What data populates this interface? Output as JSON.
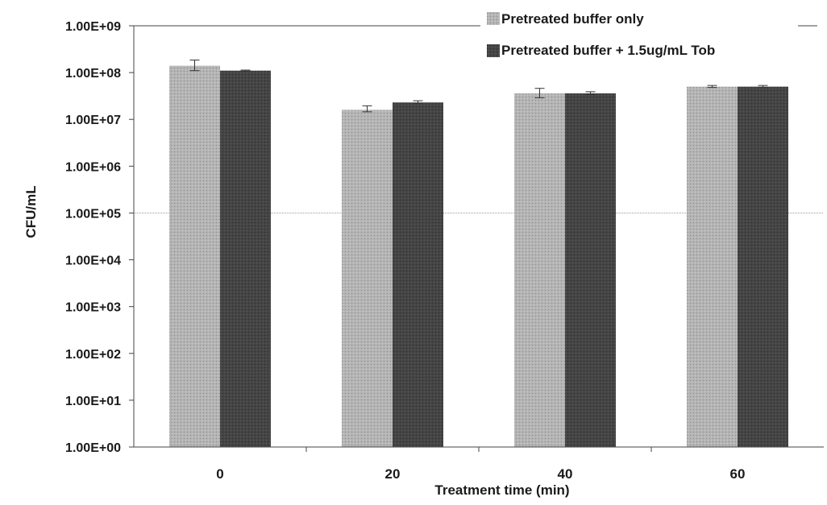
{
  "chart_data": {
    "type": "bar",
    "title": "",
    "xlabel": "Treatment time (min)",
    "ylabel": "CFU/mL",
    "y_scale": "log",
    "ylim": [
      1,
      1000000000
    ],
    "y_ticks": [
      1,
      10,
      100,
      1000,
      10000,
      100000,
      1000000,
      10000000,
      100000000,
      1000000000
    ],
    "y_tick_labels": [
      "1.00E+00",
      "1.00E+01",
      "1.00E+02",
      "1.00E+03",
      "1.00E+04",
      "1.00E+05",
      "1.00E+06",
      "1.00E+07",
      "1.00E+08",
      "1.00E+09"
    ],
    "categories": [
      "0",
      "20",
      "40",
      "60"
    ],
    "series": [
      {
        "name": "Pretreated buffer only",
        "color": "#b4b4b4",
        "values": [
          140000000,
          16000000,
          36000000,
          50000000
        ],
        "error_high": [
          185000000,
          19500000,
          46000000,
          53000000
        ],
        "error_low": [
          110000000,
          14500000,
          29000000,
          48000000
        ]
      },
      {
        "name": "Pretreated buffer + 1.5ug/mL Tob",
        "color": "#454545",
        "values": [
          110000000,
          23000000,
          36000000,
          50000000
        ],
        "error_high": [
          113000000,
          25000000,
          39000000,
          53000000
        ],
        "error_low": [
          107000000,
          22000000,
          34000000,
          48000000
        ]
      }
    ],
    "grid": "horizontal major lines at 1.00E+05 and 1.00E+09",
    "legend_position": "top-right"
  }
}
